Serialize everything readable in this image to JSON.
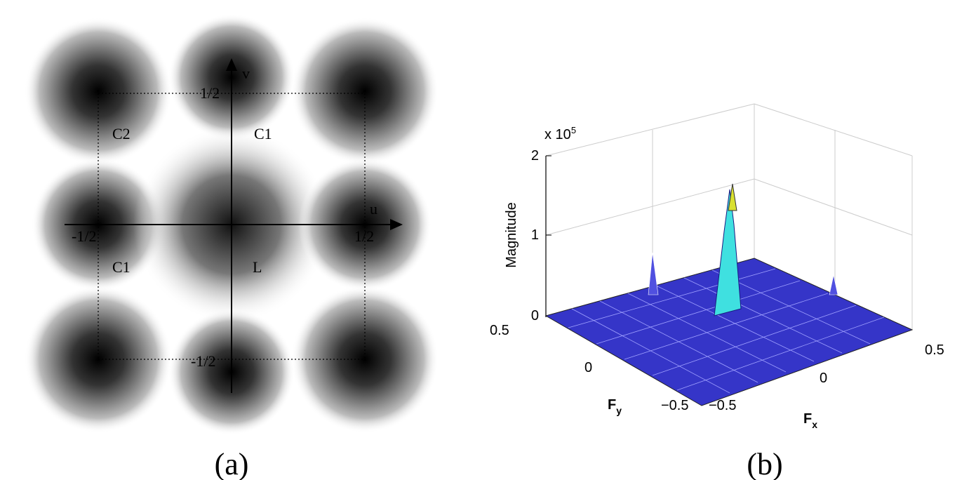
{
  "panel_a": {
    "axis_labels": {
      "v": "v",
      "u": "u"
    },
    "ticks": {
      "v_top": "1/2",
      "u_left": "-1/2",
      "u_right": "1/2",
      "v_bottom": "-1/2"
    },
    "regions": [
      "C2",
      "C1",
      "C1",
      "L"
    ],
    "caption": "(a)"
  },
  "panel_b": {
    "scale_label": "x 10",
    "scale_exponent": "5",
    "z_label": "Magnitude",
    "z_ticks": [
      "2",
      "1",
      "0"
    ],
    "y_ticks": [
      "0.5",
      "0",
      "−0.5"
    ],
    "x_ticks": [
      "−0.5",
      "0",
      "0.5"
    ],
    "y_label": {
      "base": "F",
      "sub": "y"
    },
    "x_label": {
      "base": "F",
      "sub": "x"
    },
    "caption": "(b)"
  }
}
